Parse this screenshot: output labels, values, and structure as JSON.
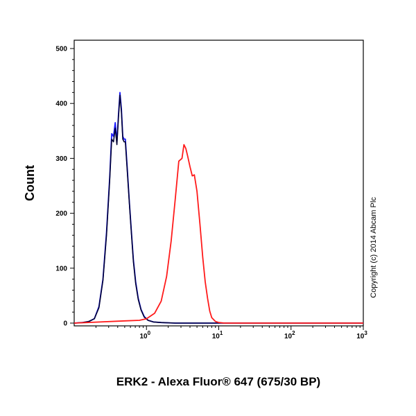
{
  "chart_data": {
    "type": "line",
    "title": "",
    "xlabel": "ERK2 - Alexa Fluor® 647 (675/30 BP)",
    "ylabel": "Count",
    "x_scale": "log",
    "xlim": [
      0.1,
      1000
    ],
    "ylim": [
      0,
      520
    ],
    "x_ticks": [
      {
        "base": "10",
        "exp": "0",
        "value": 1
      },
      {
        "base": "10",
        "exp": "1",
        "value": 10
      },
      {
        "base": "10",
        "exp": "2",
        "value": 100
      },
      {
        "base": "10",
        "exp": "3",
        "value": 1000
      }
    ],
    "y_ticks": [
      {
        "label": "0",
        "value": 0
      },
      {
        "label": "100",
        "value": 100
      },
      {
        "label": "200",
        "value": 200
      },
      {
        "label": "300",
        "value": 300
      },
      {
        "label": "400",
        "value": 400
      },
      {
        "label": "500",
        "value": 500
      }
    ],
    "grid": false,
    "legend": "none",
    "annotation": "Copyright (c) 2014 Abcam Plc",
    "series": [
      {
        "color": "#1a1aff",
        "x": [
          0.1,
          0.13,
          0.16,
          0.19,
          0.22,
          0.25,
          0.28,
          0.31,
          0.33,
          0.35,
          0.37,
          0.39,
          0.41,
          0.43,
          0.45,
          0.47,
          0.49,
          0.51,
          0.54,
          0.58,
          0.62,
          0.66,
          0.71,
          0.77,
          0.84,
          0.93,
          1.05,
          1.25,
          1.6,
          2.5,
          1000
        ],
        "values": [
          0,
          1,
          3,
          8,
          30,
          80,
          165,
          265,
          345,
          340,
          365,
          330,
          380,
          420,
          390,
          340,
          335,
          335,
          285,
          220,
          165,
          115,
          75,
          45,
          25,
          12,
          5,
          2,
          1,
          0,
          0
        ]
      },
      {
        "color": "#000033",
        "x": [
          0.1,
          0.13,
          0.16,
          0.19,
          0.22,
          0.25,
          0.28,
          0.31,
          0.33,
          0.35,
          0.37,
          0.39,
          0.41,
          0.43,
          0.45,
          0.47,
          0.49,
          0.51,
          0.54,
          0.58,
          0.62,
          0.66,
          0.71,
          0.77,
          0.84,
          0.93,
          1.05,
          1.25,
          1.6,
          2.5,
          1000
        ],
        "values": [
          0,
          1,
          3,
          8,
          28,
          78,
          160,
          260,
          335,
          330,
          355,
          325,
          375,
          415,
          385,
          335,
          330,
          330,
          280,
          218,
          162,
          112,
          72,
          43,
          24,
          11,
          5,
          2,
          1,
          0,
          0
        ]
      },
      {
        "color": "#ff1a1a",
        "x": [
          0.1,
          0.5,
          0.8,
          1.0,
          1.3,
          1.6,
          1.9,
          2.2,
          2.5,
          2.8,
          3.1,
          3.3,
          3.5,
          3.7,
          4.0,
          4.3,
          4.6,
          5.0,
          5.5,
          6.0,
          6.5,
          7.0,
          7.5,
          8.0,
          9.0,
          10.0,
          12.0,
          1000
        ],
        "values": [
          0,
          4,
          5,
          8,
          18,
          40,
          85,
          150,
          225,
          295,
          300,
          325,
          318,
          305,
          285,
          268,
          270,
          240,
          180,
          120,
          75,
          45,
          22,
          10,
          3,
          1,
          0,
          0
        ]
      }
    ]
  }
}
